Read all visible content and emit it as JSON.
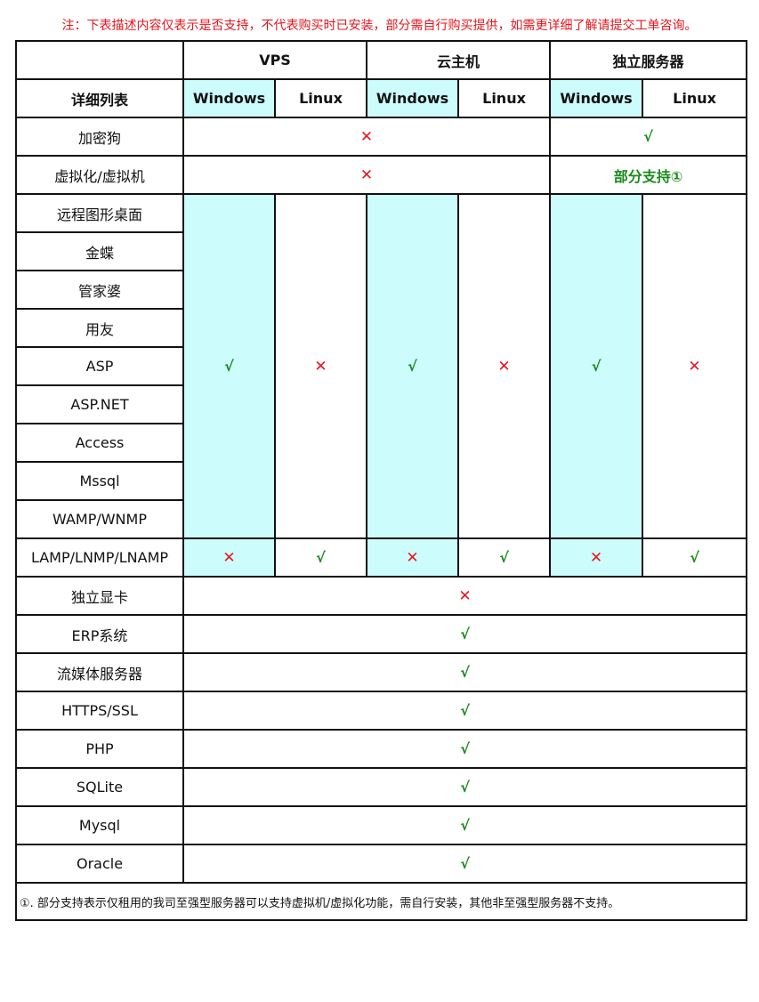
{
  "note": "注：下表描述内容仅表示是否支持，不代表购买时已安装，部分需自行购买提供，如需更详细了解请提交工单咨询。",
  "header": {
    "groups": [
      "VPS",
      "云主机",
      "独立服务器"
    ],
    "row_label": "详细列表",
    "os": [
      "Windows",
      "Linux",
      "Windows",
      "Linux",
      "Windows",
      "Linux"
    ]
  },
  "colors": {
    "highlight": "#ccfcfc",
    "check": "#1a8a1a",
    "cross": "#e8141c"
  },
  "rows": [
    {
      "label": "加密狗",
      "cells": [
        {
          "v": "✕",
          "span": 4
        },
        {
          "v": "√",
          "span": 2
        }
      ]
    },
    {
      "label": "虚拟化/虚拟机",
      "cells": [
        {
          "v": "✕",
          "span": 4
        },
        {
          "v": "部分支持①",
          "span": 2
        }
      ]
    },
    {
      "label": "远程图形桌面",
      "cells": [
        {
          "v": "√",
          "rowspan": 9,
          "hl": true
        },
        {
          "v": "✕",
          "rowspan": 9
        },
        {
          "v": "√",
          "rowspan": 9,
          "hl": true
        },
        {
          "v": "✕",
          "rowspan": 9
        },
        {
          "v": "√",
          "rowspan": 9,
          "hl": true
        },
        {
          "v": "✕",
          "rowspan": 9
        }
      ]
    },
    {
      "label": "金蝶",
      "cells": []
    },
    {
      "label": "管家婆",
      "cells": []
    },
    {
      "label": "用友",
      "cells": []
    },
    {
      "label": "ASP",
      "cells": []
    },
    {
      "label": "ASP.NET",
      "cells": []
    },
    {
      "label": "Access",
      "cells": []
    },
    {
      "label": "Mssql",
      "cells": []
    },
    {
      "label": "WAMP/WNMP",
      "cells": []
    },
    {
      "label": "LAMP/LNMP/LNAMP",
      "cells": [
        {
          "v": "✕",
          "hl": true
        },
        {
          "v": "√"
        },
        {
          "v": "✕",
          "hl": true
        },
        {
          "v": "√"
        },
        {
          "v": "✕",
          "hl": true
        },
        {
          "v": "√"
        }
      ]
    },
    {
      "label": "独立显卡",
      "cells": [
        {
          "v": "✕",
          "span": 6
        }
      ]
    },
    {
      "label": "ERP系统",
      "cells": [
        {
          "v": "√",
          "span": 6
        }
      ]
    },
    {
      "label": "流媒体服务器",
      "cells": [
        {
          "v": "√",
          "span": 6
        }
      ]
    },
    {
      "label": "HTTPS/SSL",
      "cells": [
        {
          "v": "√",
          "span": 6
        }
      ]
    },
    {
      "label": "PHP",
      "cells": [
        {
          "v": "√",
          "span": 6
        }
      ]
    },
    {
      "label": "SQLite",
      "cells": [
        {
          "v": "√",
          "span": 6
        }
      ]
    },
    {
      "label": "Mysql",
      "cells": [
        {
          "v": "√",
          "span": 6
        }
      ]
    },
    {
      "label": "Oracle",
      "cells": [
        {
          "v": "√",
          "span": 6
        }
      ]
    }
  ],
  "footnote": "①. 部分支持表示仅租用的我司至强型服务器可以支持虚拟机/虚拟化功能，需自行安装，其他非至强型服务器不支持。"
}
